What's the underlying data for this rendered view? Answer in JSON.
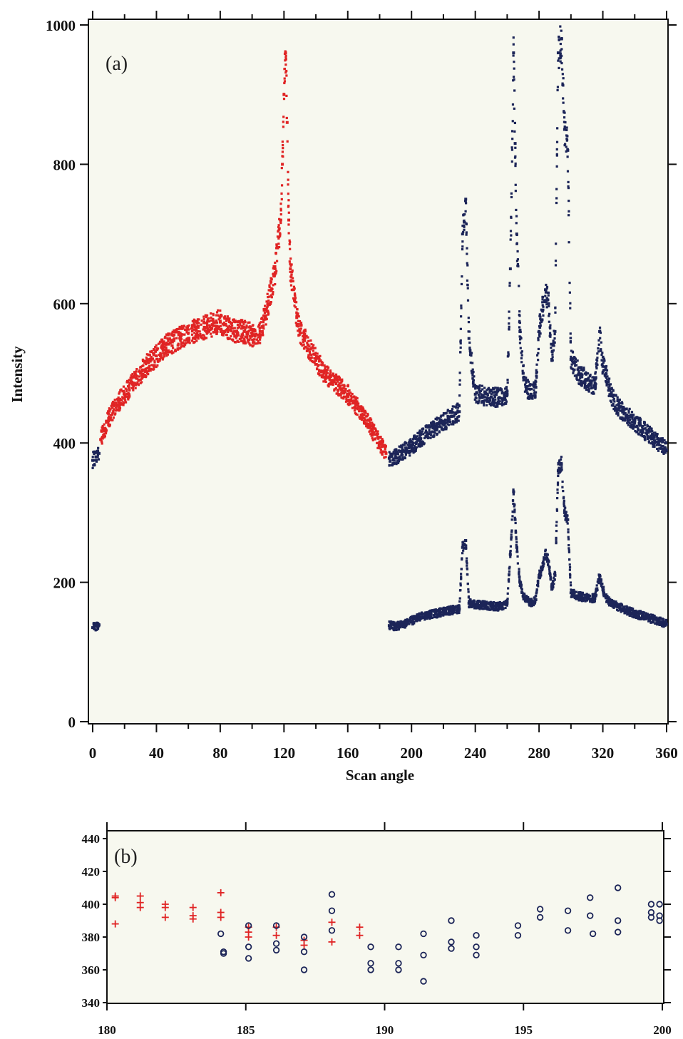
{
  "chart_data": [
    {
      "type": "scatter",
      "panel_label": "(a)",
      "title": "",
      "xlabel": "Scan angle",
      "ylabel": "Intensity",
      "xlim": [
        0,
        360
      ],
      "ylim": [
        0,
        1000
      ],
      "xticks": [
        0,
        40,
        80,
        120,
        160,
        200,
        240,
        280,
        320,
        360
      ],
      "yticks": [
        0,
        200,
        400,
        600,
        800,
        1000
      ],
      "grid": false,
      "legend": "none",
      "colors": {
        "red": "#e02424",
        "blue": "#1c2558",
        "background": "#f7f8ef"
      },
      "series": [
        {
          "color": "red",
          "x": [
            5,
            10,
            15,
            20,
            25,
            30,
            35,
            40,
            45,
            50,
            55,
            60,
            65,
            70,
            75,
            80,
            85,
            90,
            95,
            100,
            105,
            108,
            110,
            112,
            114,
            116,
            118,
            119,
            120,
            121,
            122,
            123,
            124,
            126,
            128,
            130,
            135,
            140,
            145,
            150,
            155,
            160,
            165,
            170,
            175,
            180,
            184
          ],
          "y": [
            405,
            435,
            455,
            470,
            485,
            500,
            515,
            525,
            538,
            545,
            552,
            558,
            562,
            566,
            570,
            575,
            565,
            560,
            560,
            555,
            560,
            580,
            600,
            620,
            640,
            680,
            720,
            800,
            900,
            960,
            860,
            720,
            650,
            620,
            580,
            560,
            540,
            520,
            500,
            490,
            480,
            470,
            455,
            440,
            420,
            400,
            385
          ]
        },
        {
          "color": "blue",
          "x": [
            0,
            2,
            4,
            186,
            190,
            195,
            200,
            205,
            210,
            215,
            220,
            225,
            230,
            232,
            234,
            236,
            240,
            245,
            250,
            255,
            260,
            262,
            264,
            265,
            266,
            268,
            270,
            272,
            275,
            278,
            280,
            282,
            284,
            286,
            288,
            290,
            292,
            294,
            296,
            298,
            300,
            305,
            310,
            315,
            318,
            320,
            322,
            325,
            330,
            335,
            340,
            345,
            350,
            355,
            360
          ],
          "y": [
            375,
            380,
            385,
            378,
            380,
            388,
            395,
            405,
            415,
            422,
            430,
            438,
            445,
            700,
            750,
            550,
            470,
            468,
            466,
            465,
            470,
            650,
            960,
            830,
            700,
            560,
            500,
            480,
            470,
            480,
            560,
            590,
            620,
            600,
            520,
            560,
            960,
            980,
            850,
            820,
            520,
            500,
            490,
            480,
            560,
            510,
            500,
            470,
            450,
            440,
            430,
            420,
            410,
            400,
            390
          ]
        },
        {
          "color": "blue",
          "x": [
            0,
            2,
            4,
            186,
            190,
            195,
            200,
            205,
            210,
            215,
            220,
            225,
            230,
            232,
            234,
            236,
            240,
            245,
            250,
            255,
            260,
            262,
            264,
            265,
            266,
            268,
            270,
            272,
            275,
            278,
            280,
            282,
            284,
            286,
            288,
            290,
            292,
            294,
            296,
            298,
            300,
            305,
            310,
            315,
            318,
            320,
            322,
            325,
            330,
            335,
            340,
            345,
            350,
            355,
            360
          ],
          "y": [
            135,
            137,
            139,
            138,
            137,
            140,
            145,
            150,
            153,
            155,
            158,
            160,
            162,
            250,
            260,
            170,
            168,
            167,
            166,
            165,
            170,
            240,
            330,
            290,
            250,
            200,
            180,
            175,
            170,
            175,
            210,
            220,
            240,
            230,
            190,
            210,
            360,
            370,
            300,
            290,
            185,
            180,
            178,
            177,
            210,
            190,
            178,
            170,
            165,
            160,
            155,
            152,
            148,
            145,
            140
          ]
        }
      ]
    },
    {
      "type": "scatter",
      "panel_label": "(b)",
      "title": "",
      "xlabel": "",
      "ylabel": "",
      "xlim": [
        180,
        200
      ],
      "ylim": [
        340,
        440
      ],
      "xticks": [
        180,
        185,
        190,
        195,
        200
      ],
      "yticks": [
        340,
        360,
        380,
        400,
        420,
        440
      ],
      "grid": false,
      "legend": "none",
      "series": [
        {
          "marker": "plus",
          "color": "red",
          "x": [
            180.3,
            180.3,
            180.3,
            181.2,
            181.2,
            181.2,
            182.1,
            182.1,
            182.1,
            183.1,
            183.1,
            183.1,
            184.1,
            184.1,
            184.1,
            185.1,
            185.1,
            185.1,
            186.1,
            186.1,
            187.1,
            187.1,
            188.1,
            188.1,
            189.1,
            189.1
          ],
          "y": [
            405,
            404,
            388,
            405,
            401,
            398,
            400,
            398,
            392,
            398,
            393,
            391,
            407,
            395,
            392,
            386,
            383,
            380,
            386,
            381,
            378,
            375,
            389,
            377,
            386,
            381
          ]
        },
        {
          "marker": "circle",
          "color": "blue",
          "x": [
            184.1,
            184.2,
            184.2,
            185.1,
            185.1,
            185.1,
            186.1,
            186.1,
            186.1,
            187.1,
            187.1,
            187.1,
            188.1,
            188.1,
            188.1,
            189.5,
            189.5,
            189.5,
            190.5,
            190.5,
            190.5,
            191.4,
            191.4,
            191.4,
            192.4,
            192.4,
            192.4,
            193.3,
            193.3,
            193.3,
            194.8,
            194.8,
            195.6,
            195.6,
            196.6,
            196.6,
            197.4,
            197.4,
            197.5,
            198.4,
            198.4,
            198.4,
            199.6,
            199.6,
            199.6,
            199.9,
            199.9,
            199.9
          ],
          "y": [
            382,
            371,
            370,
            387,
            374,
            367,
            387,
            376,
            372,
            380,
            371,
            360,
            406,
            396,
            384,
            374,
            364,
            360,
            374,
            364,
            360,
            382,
            369,
            353,
            390,
            377,
            373,
            381,
            374,
            369,
            387,
            381,
            397,
            392,
            396,
            384,
            404,
            393,
            382,
            410,
            390,
            383,
            400,
            395,
            392,
            400,
            393,
            390
          ]
        }
      ]
    }
  ]
}
